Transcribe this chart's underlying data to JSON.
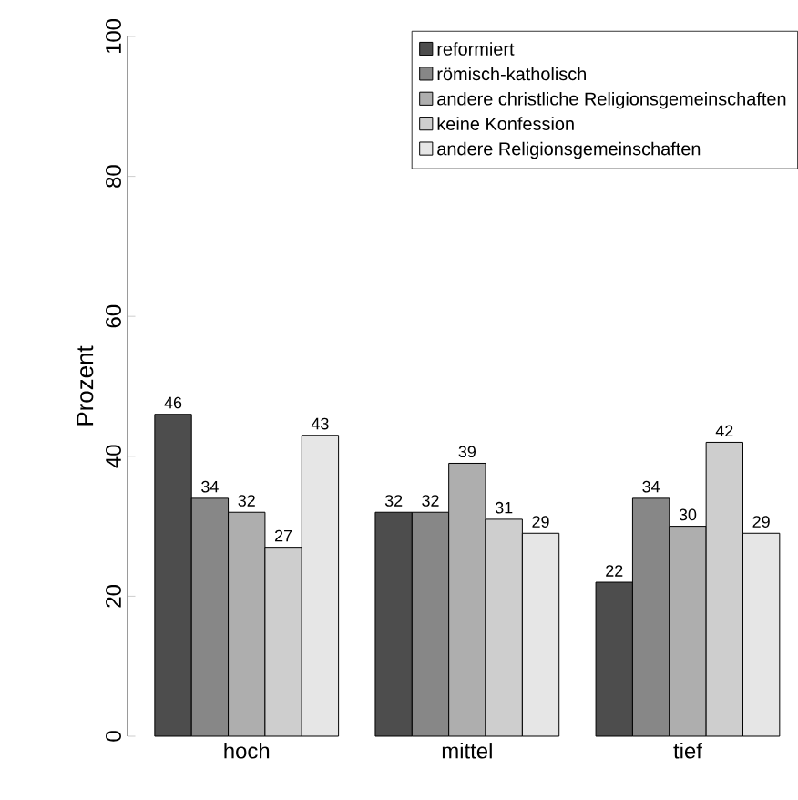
{
  "chart_data": {
    "type": "bar",
    "ylabel": "Prozent",
    "categories": [
      "hoch",
      "mittel",
      "tief"
    ],
    "series": [
      {
        "name": "reformiert",
        "color": "#4d4d4d",
        "values": [
          46,
          32,
          22
        ]
      },
      {
        "name": "römisch-katholisch",
        "color": "#878787",
        "values": [
          34,
          32,
          34
        ]
      },
      {
        "name": "andere christliche Religionsgemeinschaften",
        "color": "#aeaeae",
        "values": [
          32,
          39,
          30
        ]
      },
      {
        "name": "keine Konfession",
        "color": "#cecece",
        "values": [
          27,
          31,
          42
        ]
      },
      {
        "name": "andere Religionsgemeinschaften",
        "color": "#e6e6e6",
        "values": [
          43,
          29,
          29
        ]
      }
    ],
    "ylim": [
      0,
      100
    ],
    "yticks": [
      0,
      20,
      40,
      60,
      80,
      100
    ],
    "data_labels": true,
    "legend": "top right"
  }
}
